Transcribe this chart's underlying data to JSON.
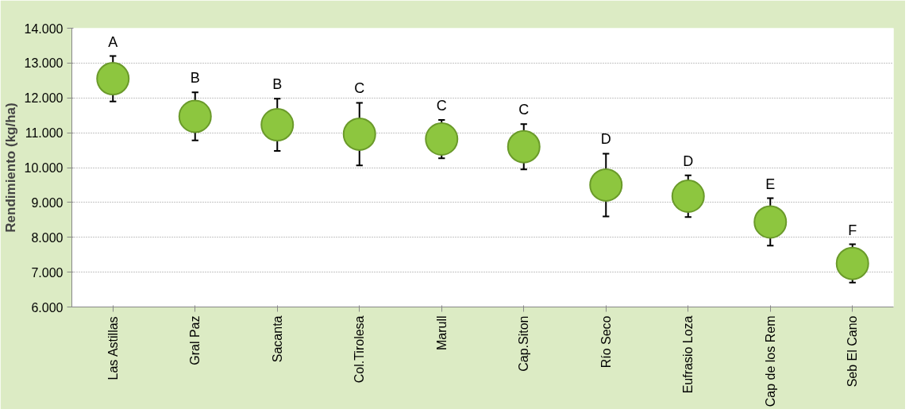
{
  "chart_data": {
    "type": "scatter",
    "ylabel": "Rendimiento (kg/ha)",
    "categories": [
      "Las Astillas",
      "Gral Paz",
      "Sacanta",
      "Col.Tirolesa",
      "Marull",
      "Cap.Siton",
      "Río Seco",
      "Eufrasio Loza",
      "Cap de los Rem",
      "Seb El Cano"
    ],
    "values": [
      12550,
      11470,
      11230,
      10960,
      10820,
      10600,
      9500,
      9180,
      8440,
      7250
    ],
    "errors": [
      650,
      690,
      750,
      900,
      550,
      650,
      900,
      600,
      680,
      550
    ],
    "color": "#8dc63f",
    "marker": "circle",
    "ylim": [
      6000,
      14000
    ],
    "yticks": [
      {
        "value": 6000,
        "label": "6.000"
      },
      {
        "value": 7000,
        "label": "7.000"
      },
      {
        "value": 8000,
        "label": "8.000"
      },
      {
        "value": 9000,
        "label": "9.000"
      },
      {
        "value": 10000,
        "label": "10.000"
      },
      {
        "value": 11000,
        "label": "11.000"
      },
      {
        "value": 12000,
        "label": "12.000"
      },
      {
        "value": 13000,
        "label": "13.000"
      },
      {
        "value": 14000,
        "label": "14.000"
      }
    ],
    "grid": "y",
    "annotations": [
      "A",
      "B",
      "B",
      "C",
      "C",
      "C",
      "D",
      "D",
      "E",
      "F"
    ]
  }
}
